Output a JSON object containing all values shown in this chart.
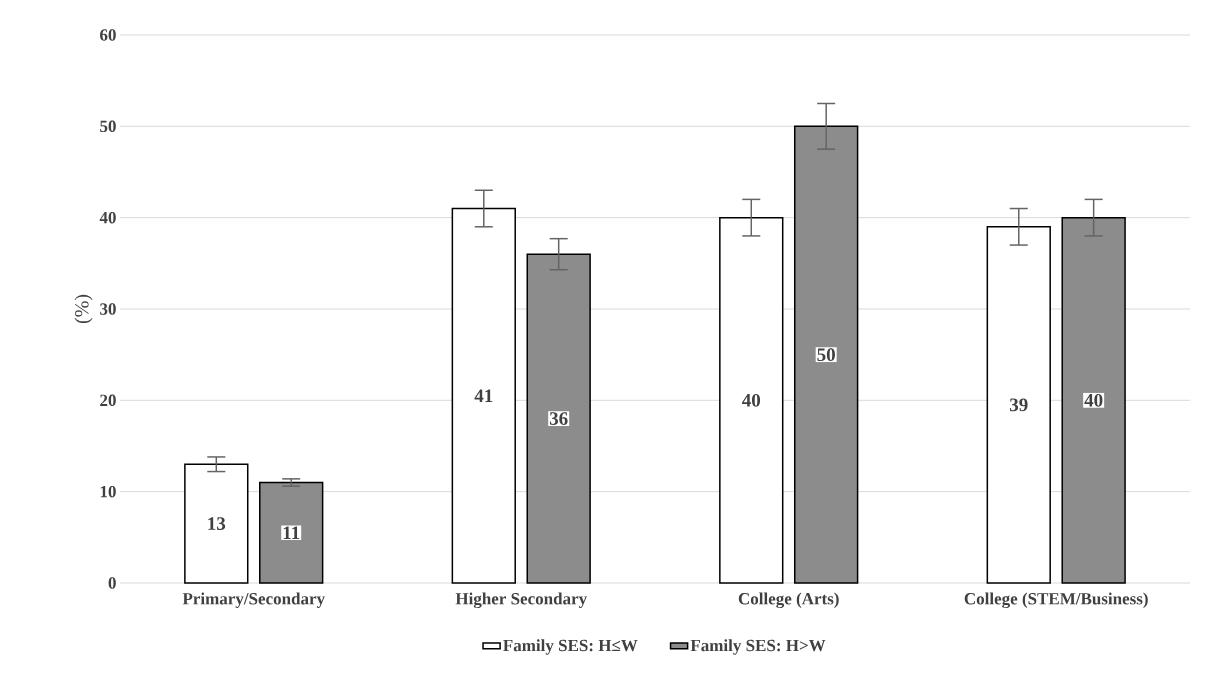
{
  "chart_data": {
    "type": "bar",
    "ylabel": "(%)",
    "categories": [
      "Primary/Secondary",
      "Higher Secondary",
      "College (Arts)",
      "College (STEM/Business)"
    ],
    "series": [
      {
        "name": "Family SES: H≤W",
        "color": "#ffffff",
        "values": [
          13,
          41,
          40,
          39
        ],
        "errors": [
          0.8,
          2,
          2,
          2
        ]
      },
      {
        "name": "Family SES: H>W",
        "color": "#8c8c8c",
        "values": [
          11,
          36,
          50,
          40
        ],
        "errors": [
          0.4,
          1.7,
          2.5,
          2
        ]
      }
    ],
    "ylim": [
      0,
      60
    ],
    "yticks": [
      0,
      10,
      20,
      30,
      40,
      50,
      60
    ],
    "grid": "y",
    "legend": "bottom",
    "data_labels": true
  }
}
